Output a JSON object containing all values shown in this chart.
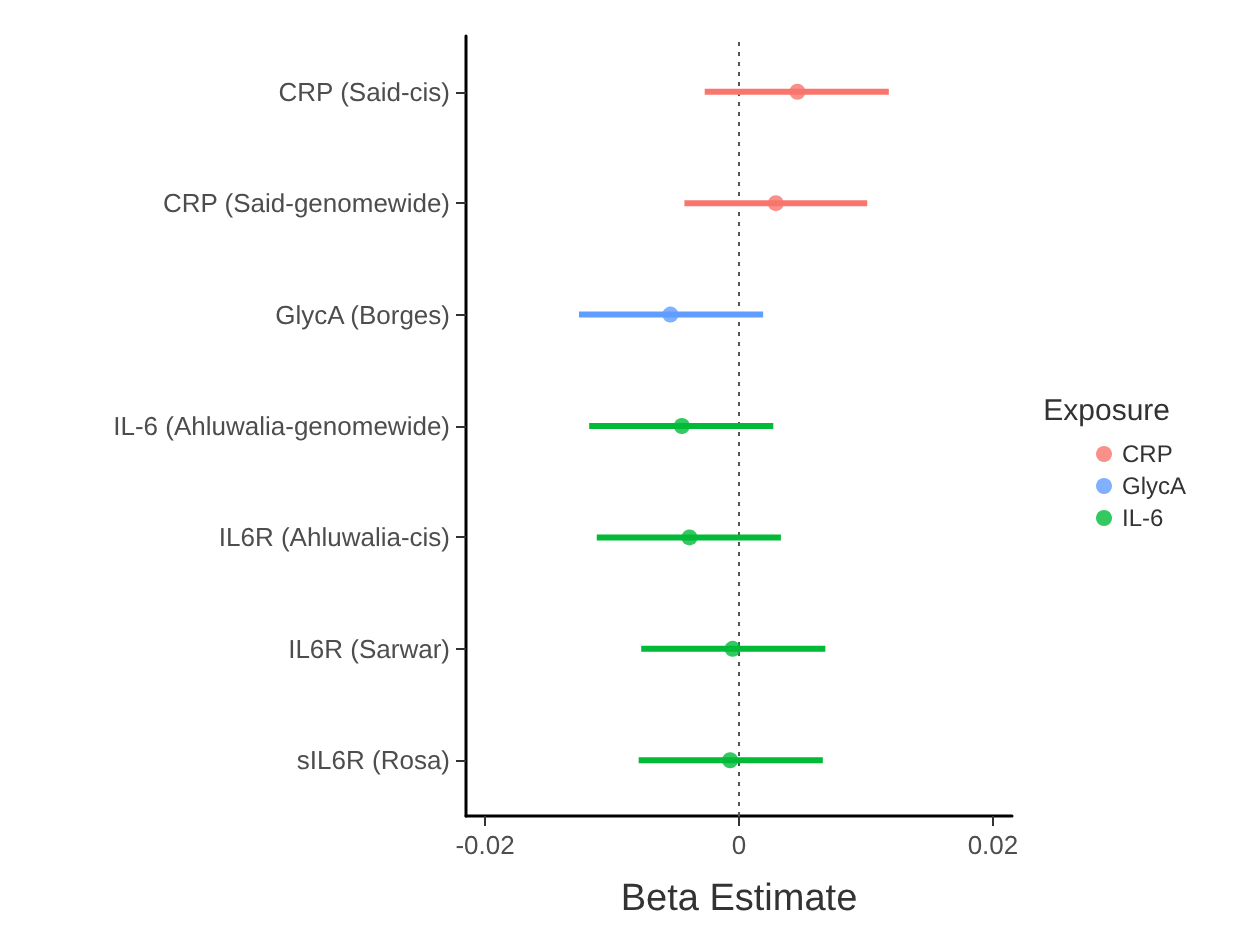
{
  "chart_data": {
    "type": "scatter",
    "orientation": "horizontal",
    "xlabel": "Beta Estimate",
    "legend_title": "Exposure",
    "legend": "right",
    "marker": "circle",
    "grid": false,
    "categories": [
      "CRP (Said-cis)",
      "CRP (Said-genomewide)",
      "GlycA (Borges)",
      "IL-6 (Ahluwalia-genomewide)",
      "IL6R (Ahluwalia-cis)",
      "IL6R (Sarwar)",
      "sIL6R (Rosa)"
    ],
    "xlim": [
      -0.0215,
      0.0215
    ],
    "xticks": [
      {
        "value": -0.02,
        "label": "-0.02"
      },
      0,
      {
        "value": 0.02,
        "label": "0.02"
      }
    ],
    "ref_lines": [
      {
        "axis": "x",
        "value": 0,
        "color": "#555555",
        "line_style": "dotted"
      }
    ],
    "series": [
      {
        "name": "CRP",
        "color": "#f8766d",
        "values": [
          0.0046,
          0.0029,
          null,
          null,
          null,
          null,
          null
        ],
        "errors": [
          [
            -0.0027,
            0.0118
          ],
          [
            -0.0043,
            0.0101
          ],
          null,
          null,
          null,
          null,
          null
        ]
      },
      {
        "name": "GlycA",
        "color": "#619cff",
        "values": [
          null,
          null,
          -0.0054,
          null,
          null,
          null,
          null
        ],
        "errors": [
          null,
          null,
          [
            -0.0126,
            0.0019
          ],
          null,
          null,
          null,
          null
        ]
      },
      {
        "name": "IL-6",
        "color": "#00ba38",
        "values": [
          null,
          null,
          null,
          -0.0045,
          -0.0039,
          -0.0005,
          -0.0007
        ],
        "errors": [
          null,
          null,
          null,
          [
            -0.0118,
            0.0027
          ],
          [
            -0.0112,
            0.0033
          ],
          [
            -0.0077,
            0.0068
          ],
          [
            -0.0079,
            0.0066
          ]
        ]
      }
    ]
  }
}
